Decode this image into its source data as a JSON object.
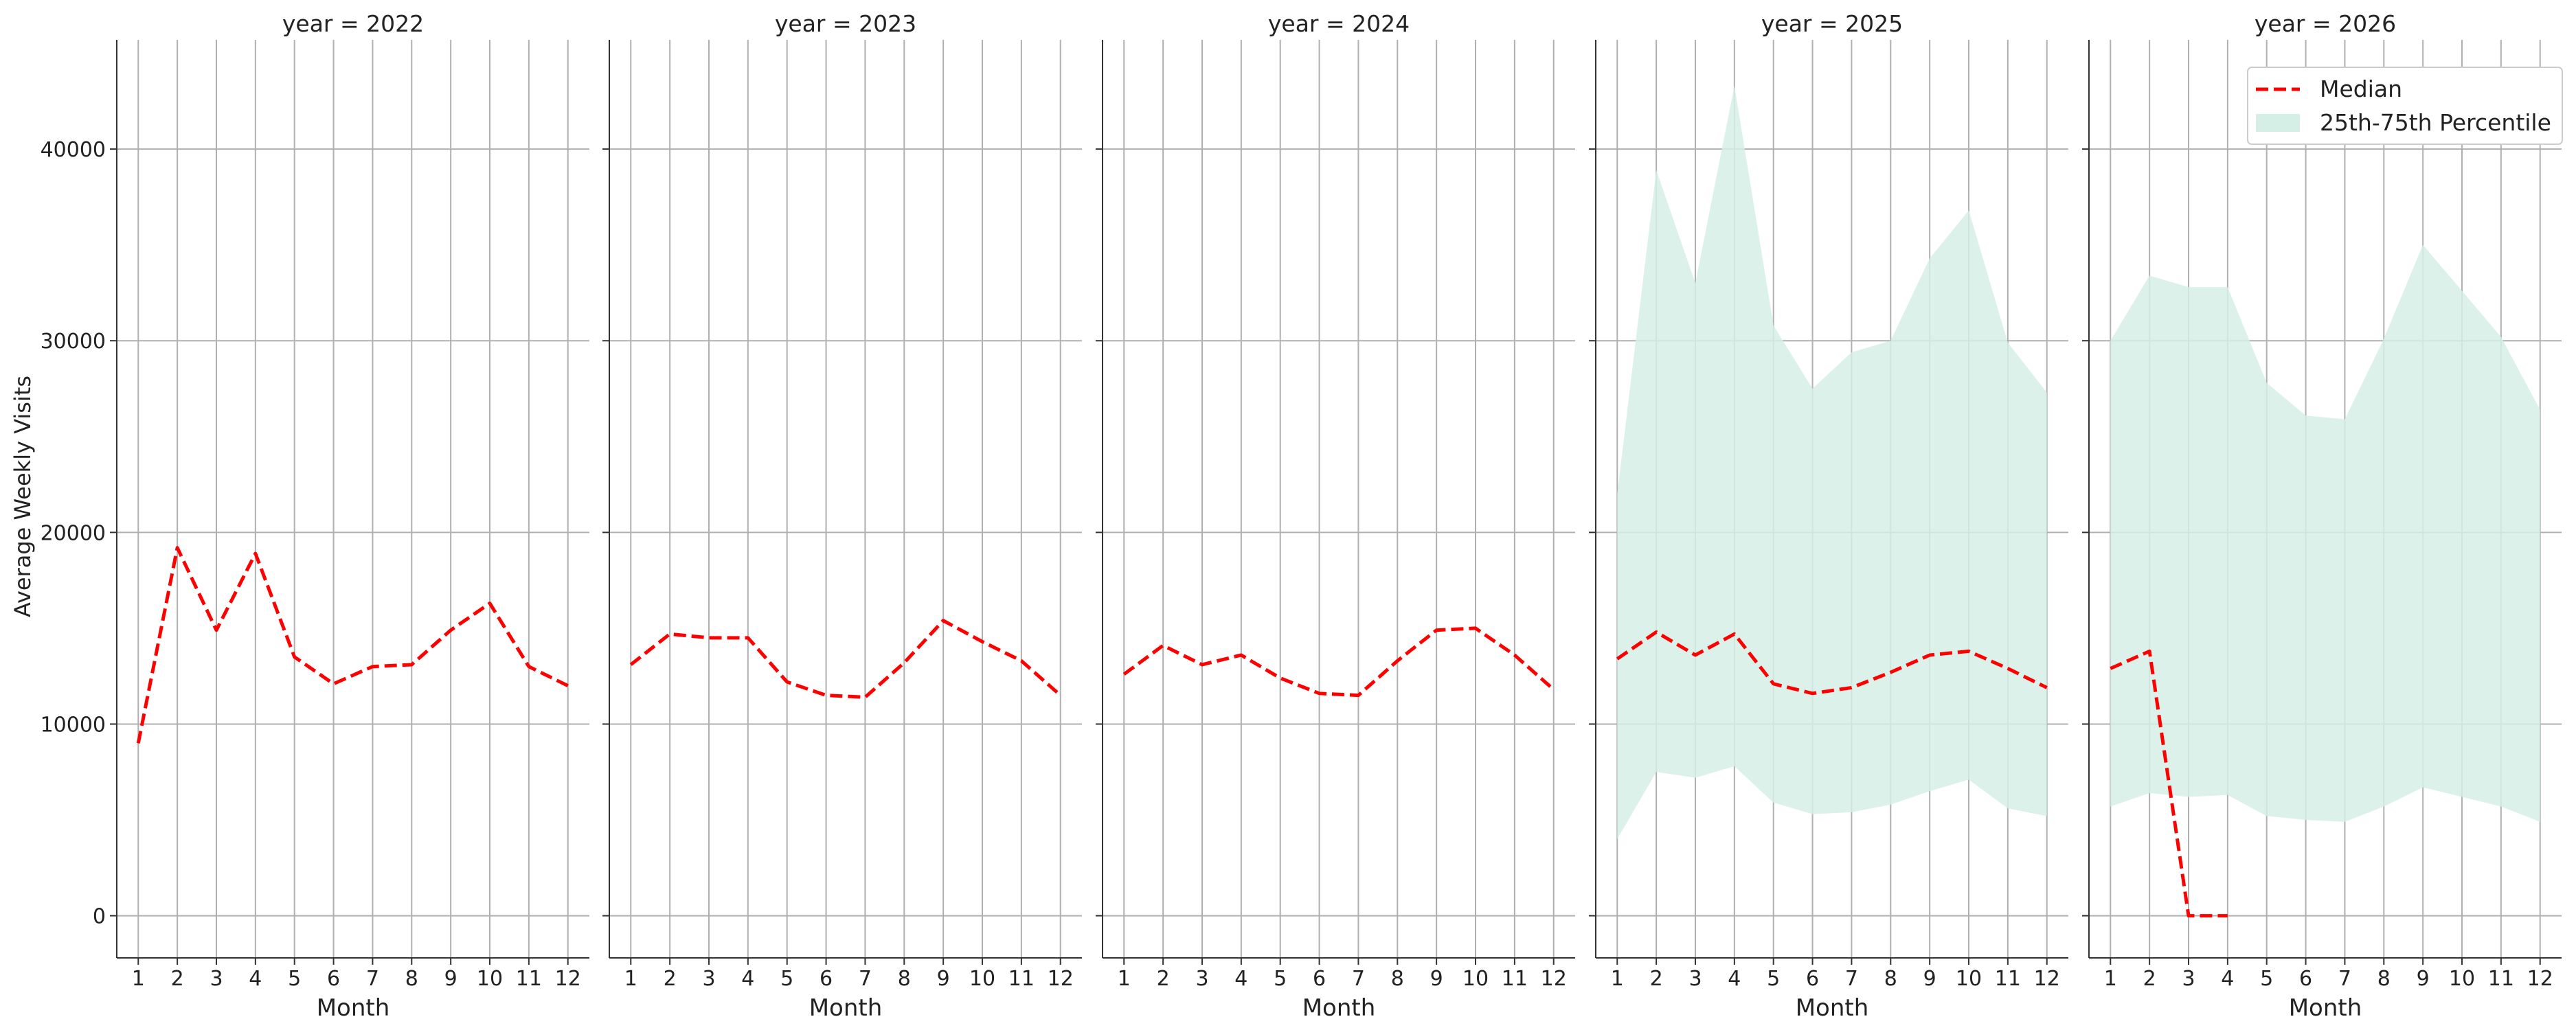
{
  "colors": {
    "median": "#ff0000",
    "band": "#d5eee6",
    "grid": "#b0b0b0",
    "axis": "#333333",
    "text": "#222222"
  },
  "chart_data": {
    "type": "line",
    "ylabel": "Average Weekly Visits",
    "xlabel": "Month",
    "ylim": [
      -2200,
      45700
    ],
    "xlim": [
      0.45,
      12.55
    ],
    "yticks": [
      0,
      10000,
      20000,
      30000,
      40000
    ],
    "xticks": [
      1,
      2,
      3,
      4,
      5,
      6,
      7,
      8,
      9,
      10,
      11,
      12
    ],
    "grid": true,
    "legend": {
      "placement": "top-right",
      "median_label": "Median",
      "band_label": "25th-75th Percentile"
    },
    "panels": [
      {
        "title": "year = 2022",
        "x": [
          1,
          2,
          3,
          4,
          5,
          6,
          7,
          8,
          9,
          10,
          11,
          12
        ],
        "median": [
          9000,
          19200,
          14900,
          18900,
          13500,
          12100,
          13000,
          13100,
          14900,
          16300,
          13000,
          12000
        ],
        "p25": null,
        "p75": null
      },
      {
        "title": "year = 2023",
        "x": [
          1,
          2,
          3,
          4,
          5,
          6,
          7,
          8,
          9,
          10,
          11,
          12
        ],
        "median": [
          13100,
          14700,
          14500,
          14500,
          12200,
          11500,
          11400,
          13200,
          15400,
          14300,
          13300,
          11500
        ],
        "p25": null,
        "p75": null
      },
      {
        "title": "year = 2024",
        "x": [
          1,
          2,
          3,
          4,
          5,
          6,
          7,
          8,
          9,
          10,
          11,
          12
        ],
        "median": [
          12600,
          14100,
          13100,
          13600,
          12400,
          11600,
          11500,
          13300,
          14900,
          15000,
          13600,
          11800
        ],
        "p25": null,
        "p75": null
      },
      {
        "title": "year = 2025",
        "x": [
          1,
          2,
          3,
          4,
          5,
          6,
          7,
          8,
          9,
          10,
          11,
          12
        ],
        "median": [
          13400,
          14800,
          13600,
          14700,
          12100,
          11600,
          11900,
          12700,
          13600,
          13800,
          12900,
          11900
        ],
        "p25": [
          4000,
          7500,
          7200,
          7800,
          5900,
          5300,
          5400,
          5800,
          6500,
          7100,
          5600,
          5200
        ],
        "p75": [
          22000,
          38900,
          33000,
          43300,
          30800,
          27500,
          29400,
          30000,
          34300,
          36800,
          29900,
          27300
        ]
      },
      {
        "title": "year = 2026",
        "x": [
          1,
          2,
          3,
          4,
          5,
          6,
          7,
          8,
          9,
          10,
          11,
          12
        ],
        "median": [
          12900,
          13800,
          0,
          0,
          null,
          null,
          null,
          null,
          null,
          null,
          null,
          null
        ],
        "p25": [
          5700,
          6400,
          6200,
          6300,
          5200,
          5000,
          4900,
          5700,
          6700,
          6200,
          5700,
          4900
        ],
        "p75": [
          30000,
          33400,
          32800,
          32800,
          27800,
          26100,
          25900,
          30100,
          35000,
          32600,
          30200,
          26400
        ]
      }
    ]
  }
}
